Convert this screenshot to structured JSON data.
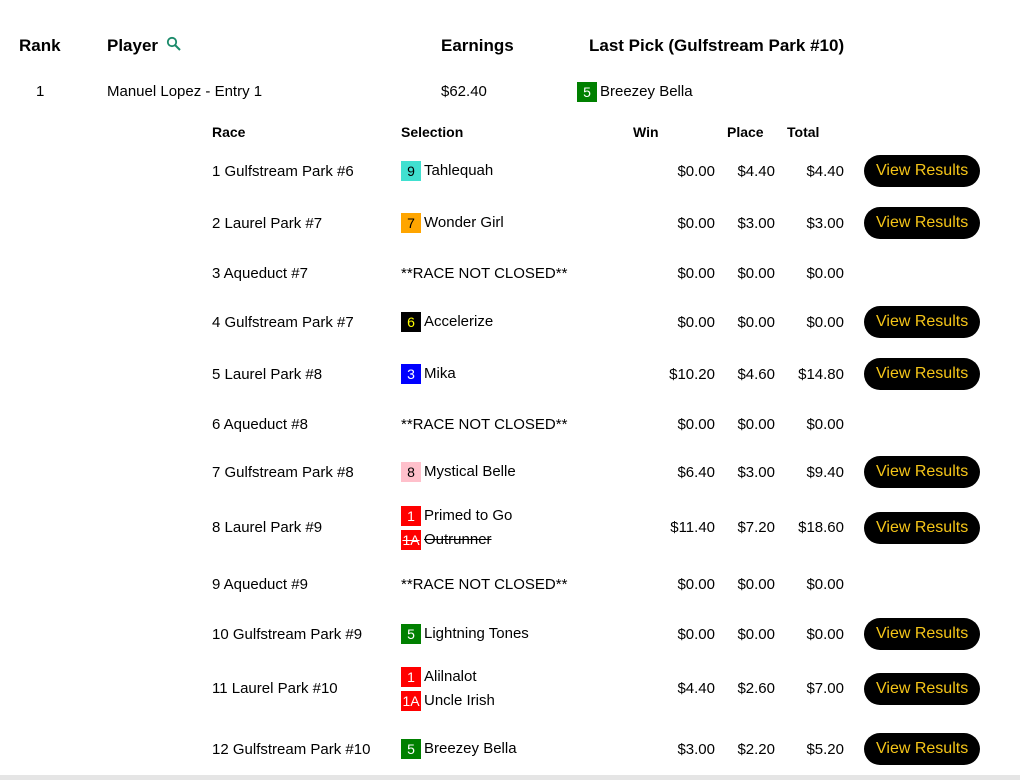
{
  "header": {
    "rank": "Rank",
    "player": "Player",
    "earnings": "Earnings",
    "last_pick": "Last Pick (Gulfstream Park #10)",
    "search_icon": "search-icon",
    "search_color": "#1a8a6a"
  },
  "entry": {
    "rank": "1",
    "player": "Manuel Lopez - Entry 1",
    "earnings": "$62.40",
    "last_pick": {
      "num": "5",
      "bg": "#008000",
      "fg": "#ffffff",
      "horse": "Breezey Bella"
    }
  },
  "sub": {
    "columns": {
      "race": "Race",
      "selection": "Selection",
      "win": "Win",
      "place": "Place",
      "total": "Total"
    },
    "button_label": "View Results",
    "rows": [
      {
        "race": "1 Gulfstream Park #6",
        "picks": [
          {
            "num": "9",
            "bg": "#40E0D0",
            "fg": "#000000",
            "horse": "Tahlequah"
          }
        ],
        "win": "$0.00",
        "place": "$4.40",
        "total": "$4.40",
        "button": true
      },
      {
        "race": "2 Laurel Park #7",
        "picks": [
          {
            "num": "7",
            "bg": "#FFA500",
            "fg": "#000000",
            "horse": "Wonder Girl"
          }
        ],
        "win": "$0.00",
        "place": "$3.00",
        "total": "$3.00",
        "button": true
      },
      {
        "race": "3 Aqueduct #7",
        "note": "**RACE NOT CLOSED**",
        "win": "$0.00",
        "place": "$0.00",
        "total": "$0.00",
        "button": false
      },
      {
        "race": "4 Gulfstream Park #7",
        "picks": [
          {
            "num": "6",
            "bg": "#000000",
            "fg": "#FFFF00",
            "horse": "Accelerize"
          }
        ],
        "win": "$0.00",
        "place": "$0.00",
        "total": "$0.00",
        "button": true
      },
      {
        "race": "5 Laurel Park #8",
        "picks": [
          {
            "num": "3",
            "bg": "#0000FF",
            "fg": "#ffffff",
            "horse": "Mika"
          }
        ],
        "win": "$10.20",
        "place": "$4.60",
        "total": "$14.80",
        "button": true
      },
      {
        "race": "6 Aqueduct #8",
        "note": "**RACE NOT CLOSED**",
        "win": "$0.00",
        "place": "$0.00",
        "total": "$0.00",
        "button": false
      },
      {
        "race": "7 Gulfstream Park #8",
        "picks": [
          {
            "num": "8",
            "bg": "#FFC0CB",
            "fg": "#000000",
            "horse": "Mystical Belle"
          }
        ],
        "win": "$6.40",
        "place": "$3.00",
        "total": "$9.40",
        "button": true
      },
      {
        "race": "8 Laurel Park #9",
        "picks": [
          {
            "num": "1",
            "bg": "#FF0000",
            "fg": "#ffffff",
            "horse": "Primed to Go"
          },
          {
            "num": "1A",
            "bg": "#FF0000",
            "fg": "#ffffff",
            "horse": "Outrunner",
            "scratched": true
          }
        ],
        "win": "$11.40",
        "place": "$7.20",
        "total": "$18.60",
        "button": true
      },
      {
        "race": "9 Aqueduct #9",
        "note": "**RACE NOT CLOSED**",
        "win": "$0.00",
        "place": "$0.00",
        "total": "$0.00",
        "button": false
      },
      {
        "race": "10 Gulfstream Park #9",
        "picks": [
          {
            "num": "5",
            "bg": "#008000",
            "fg": "#ffffff",
            "horse": "Lightning Tones"
          }
        ],
        "win": "$0.00",
        "place": "$0.00",
        "total": "$0.00",
        "button": true
      },
      {
        "race": "11 Laurel Park #10",
        "picks": [
          {
            "num": "1",
            "bg": "#FF0000",
            "fg": "#ffffff",
            "horse": "Alilnalot"
          },
          {
            "num": "1A",
            "bg": "#FF0000",
            "fg": "#ffffff",
            "horse": "Uncle Irish"
          }
        ],
        "win": "$4.40",
        "place": "$2.60",
        "total": "$7.00",
        "button": true
      },
      {
        "race": "12 Gulfstream Park #10",
        "picks": [
          {
            "num": "5",
            "bg": "#008000",
            "fg": "#ffffff",
            "horse": "Breezey Bella"
          }
        ],
        "win": "$3.00",
        "place": "$2.20",
        "total": "$5.20",
        "button": true
      }
    ]
  }
}
